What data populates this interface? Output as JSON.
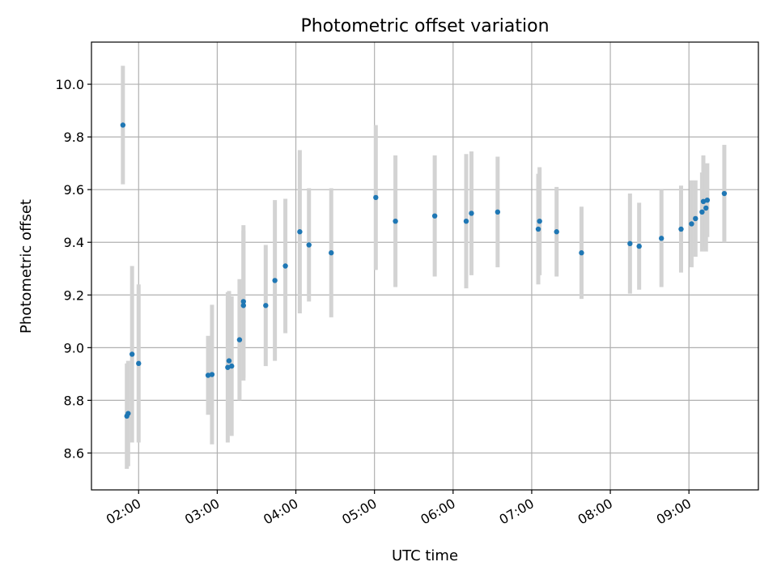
{
  "colors": {
    "point": "#1f77b4",
    "errorbar": "#d3d3d3",
    "grid": "#b0b0b0"
  },
  "chart_data": {
    "type": "scatter",
    "title": "Photometric offset variation",
    "xlabel": "UTC time",
    "ylabel": "Photometric offset",
    "grid": true,
    "x_is_time": true,
    "xlim": [
      "01:24",
      "09:53"
    ],
    "ylim": [
      8.46,
      10.16
    ],
    "xticks": [
      "02:00",
      "03:00",
      "04:00",
      "05:00",
      "06:00",
      "07:00",
      "08:00",
      "09:00"
    ],
    "yticks": [
      8.6,
      8.8,
      9.0,
      9.2,
      9.4,
      9.6,
      9.8,
      10.0
    ],
    "ytick_labels": [
      "8.6",
      "8.8",
      "9.0",
      "9.2",
      "9.4",
      "9.6",
      "9.8",
      "10.0"
    ],
    "series": [
      {
        "points": [
          {
            "x": "01:48",
            "y": 9.845,
            "err": 0.225
          },
          {
            "x": "01:51",
            "y": 8.74,
            "err": 0.2
          },
          {
            "x": "01:52",
            "y": 8.75,
            "err": 0.2
          },
          {
            "x": "01:55",
            "y": 8.975,
            "err": 0.335
          },
          {
            "x": "02:00",
            "y": 8.94,
            "err": 0.3
          },
          {
            "x": "02:53",
            "y": 8.895,
            "err": 0.15
          },
          {
            "x": "02:56",
            "y": 8.898,
            "err": 0.265
          },
          {
            "x": "03:08",
            "y": 8.925,
            "err": 0.285
          },
          {
            "x": "03:09",
            "y": 8.95,
            "err": 0.265
          },
          {
            "x": "03:11",
            "y": 8.93,
            "err": 0.265
          },
          {
            "x": "03:17",
            "y": 9.03,
            "err": 0.23
          },
          {
            "x": "03:20",
            "y": 9.16,
            "err": 0.285
          },
          {
            "x": "03:20",
            "y": 9.175,
            "err": 0.29
          },
          {
            "x": "03:37",
            "y": 9.16,
            "err": 0.23
          },
          {
            "x": "03:44",
            "y": 9.255,
            "err": 0.305
          },
          {
            "x": "03:52",
            "y": 9.31,
            "err": 0.255
          },
          {
            "x": "04:03",
            "y": 9.44,
            "err": 0.31
          },
          {
            "x": "04:10",
            "y": 9.39,
            "err": 0.215
          },
          {
            "x": "04:27",
            "y": 9.36,
            "err": 0.245
          },
          {
            "x": "05:01",
            "y": 9.57,
            "err": 0.275
          },
          {
            "x": "05:16",
            "y": 9.48,
            "err": 0.25
          },
          {
            "x": "05:46",
            "y": 9.5,
            "err": 0.23
          },
          {
            "x": "06:10",
            "y": 9.48,
            "err": 0.255
          },
          {
            "x": "06:14",
            "y": 9.51,
            "err": 0.235
          },
          {
            "x": "06:34",
            "y": 9.515,
            "err": 0.21
          },
          {
            "x": "07:05",
            "y": 9.45,
            "err": 0.21
          },
          {
            "x": "07:06",
            "y": 9.48,
            "err": 0.205
          },
          {
            "x": "07:19",
            "y": 9.44,
            "err": 0.17
          },
          {
            "x": "07:38",
            "y": 9.36,
            "err": 0.175
          },
          {
            "x": "08:15",
            "y": 9.395,
            "err": 0.19
          },
          {
            "x": "08:22",
            "y": 9.385,
            "err": 0.165
          },
          {
            "x": "08:39",
            "y": 9.415,
            "err": 0.185
          },
          {
            "x": "08:54",
            "y": 9.45,
            "err": 0.165
          },
          {
            "x": "09:02",
            "y": 9.47,
            "err": 0.165
          },
          {
            "x": "09:05",
            "y": 9.49,
            "err": 0.145
          },
          {
            "x": "09:10",
            "y": 9.515,
            "err": 0.15
          },
          {
            "x": "09:11",
            "y": 9.555,
            "err": 0.175
          },
          {
            "x": "09:13",
            "y": 9.53,
            "err": 0.165
          },
          {
            "x": "09:14",
            "y": 9.56,
            "err": 0.14
          },
          {
            "x": "09:27",
            "y": 9.585,
            "err": 0.185
          }
        ]
      }
    ]
  }
}
